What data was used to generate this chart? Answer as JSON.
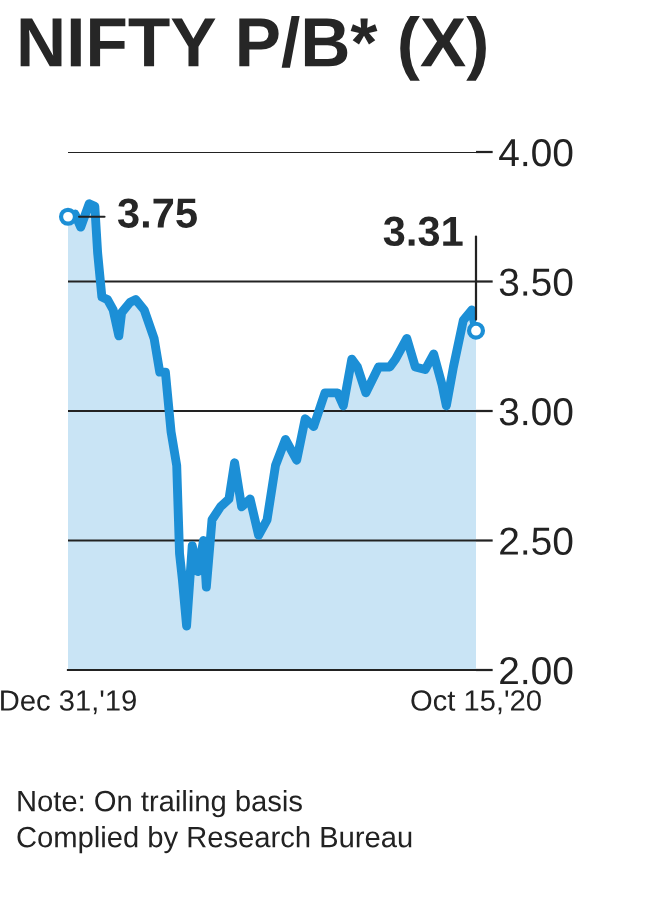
{
  "chart_data": {
    "type": "area",
    "title": "NIFTY P/B* (X)",
    "x": [
      "2019-12-31",
      "2020-01-05",
      "2020-01-09",
      "2020-01-15",
      "2020-01-19",
      "2020-01-21",
      "2020-01-24",
      "2020-01-28",
      "2020-02-01",
      "2020-02-05",
      "2020-02-07",
      "2020-02-13",
      "2020-02-17",
      "2020-02-23",
      "2020-03-01",
      "2020-03-05",
      "2020-03-09",
      "2020-03-13",
      "2020-03-17",
      "2020-03-19",
      "2020-03-21",
      "2020-03-24",
      "2020-03-28",
      "2020-04-01",
      "2020-04-05",
      "2020-04-07",
      "2020-04-11",
      "2020-04-17",
      "2020-04-23",
      "2020-04-27",
      "2020-05-02",
      "2020-05-08",
      "2020-05-14",
      "2020-05-20",
      "2020-05-26",
      "2020-06-02",
      "2020-06-10",
      "2020-06-16",
      "2020-06-22",
      "2020-06-30",
      "2020-07-09",
      "2020-07-13",
      "2020-07-19",
      "2020-07-23",
      "2020-07-29",
      "2020-08-07",
      "2020-08-15",
      "2020-08-19",
      "2020-08-27",
      "2020-09-02",
      "2020-09-09",
      "2020-09-15",
      "2020-09-21",
      "2020-09-24",
      "2020-09-29",
      "2020-10-06",
      "2020-10-12",
      "2020-10-15"
    ],
    "series": [
      {
        "color": "#1c8fd6",
        "values": [
          3.75,
          3.76,
          3.71,
          3.8,
          3.79,
          3.61,
          3.44,
          3.43,
          3.39,
          3.29,
          3.38,
          3.42,
          3.43,
          3.39,
          3.28,
          3.15,
          3.15,
          2.92,
          2.79,
          2.45,
          2.35,
          2.17,
          2.48,
          2.38,
          2.5,
          2.32,
          2.58,
          2.63,
          2.66,
          2.8,
          2.63,
          2.66,
          2.52,
          2.58,
          2.79,
          2.89,
          2.81,
          2.97,
          2.94,
          3.07,
          3.07,
          3.02,
          3.2,
          3.17,
          3.07,
          3.17,
          3.17,
          3.2,
          3.28,
          3.17,
          3.16,
          3.22,
          3.1,
          3.02,
          3.17,
          3.35,
          3.39,
          3.31
        ]
      }
    ],
    "xlim": [
      "2019-12-31",
      "2020-10-15"
    ],
    "xticks": [
      {
        "value": "2019-12-31",
        "label": "Dec 31,'19"
      },
      {
        "value": "2020-10-15",
        "label": "Oct 15,'20"
      }
    ],
    "ylim": [
      2.0,
      4.0
    ],
    "yticks": [
      {
        "value": 2.0,
        "label": "2.00"
      },
      {
        "value": 2.5,
        "label": "2.50"
      },
      {
        "value": 3.0,
        "label": "3.00"
      },
      {
        "value": 3.5,
        "label": "3.50"
      },
      {
        "value": 4.0,
        "label": "4.00"
      }
    ],
    "grid": "y",
    "marker": "none",
    "legend": false,
    "annotations": [
      {
        "text": "3.75",
        "x": "2019-12-31",
        "y": 3.75
      },
      {
        "text": "3.31",
        "x": "2020-10-15",
        "y": 3.31
      },
      "Note: On trailing basis",
      "Complied by Research Bureau"
    ]
  }
}
